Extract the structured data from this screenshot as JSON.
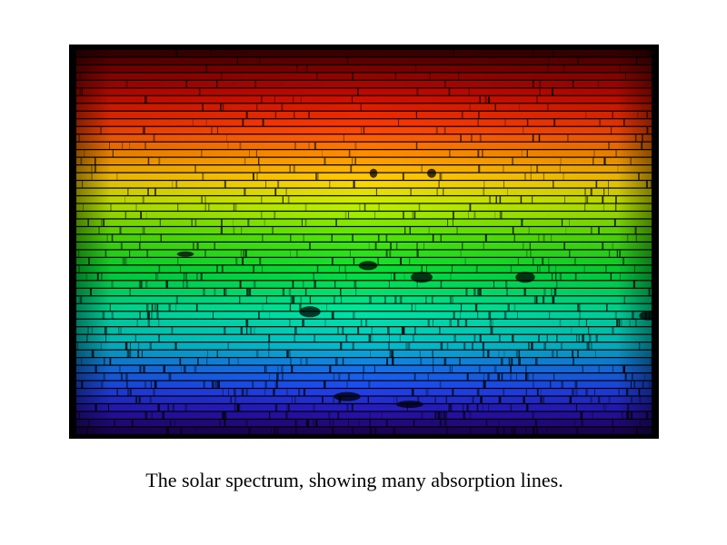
{
  "figure": {
    "caption": "The solar spectrum, showing many absorption lines.",
    "subject": "solar-spectrum-image",
    "background_color": "#000000"
  }
}
